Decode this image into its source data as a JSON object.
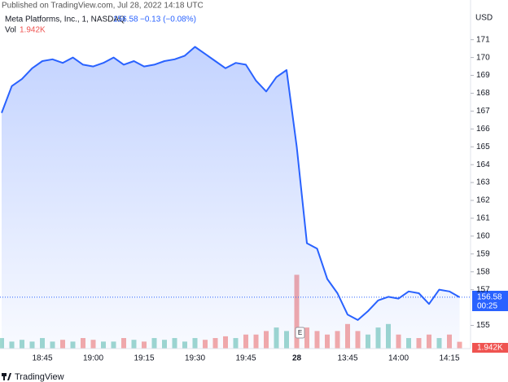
{
  "header": {
    "published": "Published on TradingView.com, Jul 28, 2022 14:18 UTC"
  },
  "footer": {
    "brand": "TradingView"
  },
  "chart_data": {
    "type": "line",
    "title": "Meta Platforms, Inc., 1, NASDAQ",
    "last": 156.58,
    "change": "−0.13 (−0.08%)",
    "currency": "USD",
    "countdown": "00:25",
    "earnings_marker": "E",
    "categories": [
      null,
      null,
      null,
      null,
      "18:45",
      null,
      null,
      null,
      null,
      "19:00",
      null,
      null,
      null,
      null,
      "19:15",
      null,
      null,
      null,
      null,
      "19:30",
      null,
      null,
      null,
      null,
      "19:45",
      null,
      null,
      null,
      null,
      "28",
      null,
      null,
      null,
      null,
      "13:45",
      null,
      null,
      null,
      null,
      "14:00",
      null,
      null,
      null,
      null,
      "14:15",
      null
    ],
    "series": [
      {
        "name": "Meta Platforms, Inc., 1, NASDAQ",
        "color": "#2962ff",
        "values": [
          166.9,
          168.4,
          168.8,
          169.4,
          169.8,
          169.9,
          169.7,
          170.0,
          169.6,
          169.5,
          169.7,
          170.0,
          169.6,
          169.8,
          169.5,
          169.6,
          169.8,
          169.9,
          170.1,
          170.6,
          170.2,
          169.8,
          169.4,
          169.7,
          169.6,
          168.7,
          168.1,
          168.9,
          169.3,
          165.0,
          159.6,
          159.3,
          157.6,
          156.8,
          155.6,
          155.3,
          155.8,
          156.4,
          156.6,
          156.5,
          156.9,
          156.8,
          156.2,
          157.0,
          156.9,
          156.58
        ]
      }
    ],
    "ylim": [
      153.7,
      172.4
    ],
    "yticks": [
      155,
      157,
      158,
      159,
      160,
      161,
      162,
      163,
      164,
      165,
      166,
      167,
      168,
      169,
      170,
      171
    ],
    "volume": {
      "name": "Vol",
      "last_label": "1.942K",
      "vlim": [
        0,
        95
      ],
      "values": [
        3,
        2,
        2.5,
        2,
        3,
        2,
        2.5,
        2,
        3,
        2.5,
        2,
        2,
        3,
        2.5,
        2,
        3,
        2.5,
        3,
        2,
        3,
        2.5,
        3,
        3.5,
        3,
        4,
        4,
        5,
        6,
        5,
        21,
        6,
        5,
        4,
        5,
        7,
        5,
        4,
        6,
        7,
        4,
        3,
        3,
        4,
        3,
        4,
        1.942
      ],
      "colors": [
        "#9fd8cf",
        "#9fd8cf",
        "#9fd8cf",
        "#9fd8cf",
        "#9fd8cf",
        "#9fd8cf",
        "#f6aaa8",
        "#9fd8cf",
        "#f6aaa8",
        "#f6aaa8",
        "#9fd8cf",
        "#9fd8cf",
        "#f6aaa8",
        "#9fd8cf",
        "#f6aaa8",
        "#9fd8cf",
        "#9fd8cf",
        "#9fd8cf",
        "#9fd8cf",
        "#9fd8cf",
        "#f6aaa8",
        "#f6aaa8",
        "#f6aaa8",
        "#9fd8cf",
        "#f6aaa8",
        "#f6aaa8",
        "#f6aaa8",
        "#9fd8cf",
        "#9fd8cf",
        "#f6aaa8",
        "#f6aaa8",
        "#f6aaa8",
        "#f6aaa8",
        "#f6aaa8",
        "#f6aaa8",
        "#f6aaa8",
        "#9fd8cf",
        "#9fd8cf",
        "#9fd8cf",
        "#f6aaa8",
        "#9fd8cf",
        "#f6aaa8",
        "#f6aaa8",
        "#9fd8cf",
        "#f6aaa8",
        "#f6aaa8"
      ]
    },
    "grid": false
  }
}
